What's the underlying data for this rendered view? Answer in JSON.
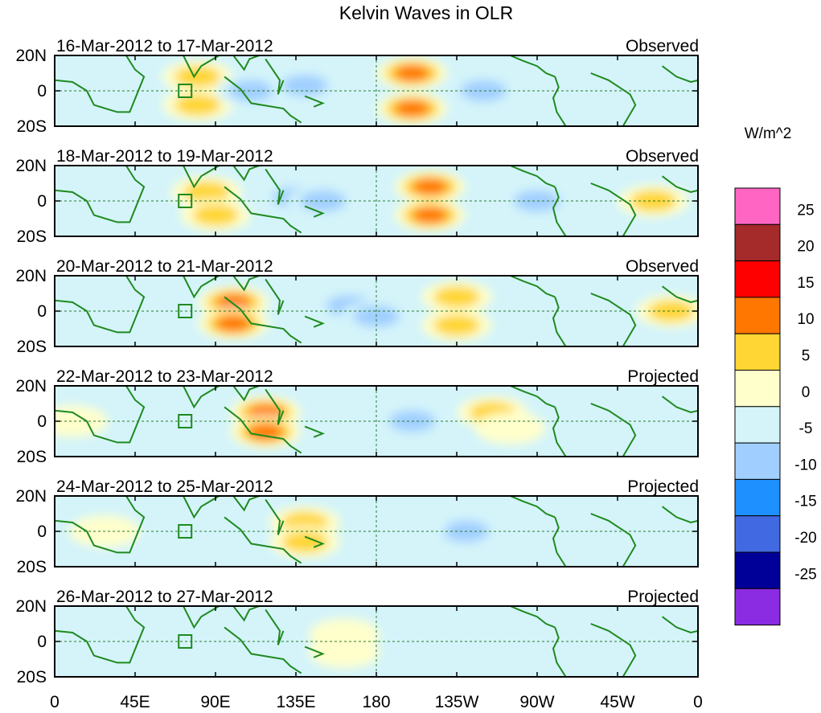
{
  "chart_data": {
    "type": "heatmap",
    "title": "Kelvin Waves in OLR",
    "units": "W/m^2",
    "x_tick_labels": [
      "0",
      "45E",
      "90E",
      "135E",
      "180",
      "135W",
      "90W",
      "45W",
      "0"
    ],
    "x_tick_values_deg_east": [
      0,
      45,
      90,
      135,
      180,
      225,
      270,
      315,
      360
    ],
    "y_tick_labels": [
      "20N",
      "0",
      "20S"
    ],
    "y_tick_values": [
      20,
      0,
      -20
    ],
    "xlim": [
      0,
      360
    ],
    "ylim": [
      -20,
      20
    ],
    "colorbar": {
      "labels": [
        "25",
        "20",
        "15",
        "10",
        "5",
        "0",
        "-5",
        "-10",
        "-15",
        "-20",
        "-25"
      ],
      "levels": [
        25,
        20,
        15,
        10,
        5,
        0,
        -5,
        -10,
        -15,
        -20,
        -25
      ],
      "colors": [
        "#ff66c4",
        "#a52a2a",
        "#ff0000",
        "#ff7700",
        "#ffd633",
        "#ffffcc",
        "#d4f4fa",
        "#a0cfff",
        "#1e90ff",
        "#4169e1",
        "#000099",
        "#8b2be2"
      ]
    },
    "panels": [
      {
        "date_range": "16-Mar-2012 to 17-Mar-2012",
        "status": "Observed",
        "anomalies": [
          {
            "lon": 80,
            "lat": 8,
            "value": 12
          },
          {
            "lon": 80,
            "lat": -8,
            "value": 12
          },
          {
            "lon": 200,
            "lat": 10,
            "value": 18
          },
          {
            "lon": 200,
            "lat": -10,
            "value": 18
          },
          {
            "lon": 110,
            "lat": 0,
            "value": -10
          },
          {
            "lon": 140,
            "lat": 3,
            "value": -12
          },
          {
            "lon": 240,
            "lat": 0,
            "value": -12
          },
          {
            "lon": 275,
            "lat": 0,
            "value": -8
          },
          {
            "lon": 15,
            "lat": 0,
            "value": -8
          }
        ]
      },
      {
        "date_range": "18-Mar-2012 to 19-Mar-2012",
        "status": "Observed",
        "anomalies": [
          {
            "lon": 85,
            "lat": 5,
            "value": 10
          },
          {
            "lon": 90,
            "lat": -8,
            "value": 12
          },
          {
            "lon": 210,
            "lat": 8,
            "value": 16
          },
          {
            "lon": 210,
            "lat": -8,
            "value": 15
          },
          {
            "lon": 335,
            "lat": 0,
            "value": 10
          },
          {
            "lon": 135,
            "lat": 2,
            "value": -14
          },
          {
            "lon": 150,
            "lat": 0,
            "value": -12
          },
          {
            "lon": 270,
            "lat": 0,
            "value": -12
          },
          {
            "lon": 30,
            "lat": 0,
            "value": -7
          }
        ]
      },
      {
        "date_range": "20-Mar-2012 to 21-Mar-2012",
        "status": "Observed",
        "anomalies": [
          {
            "lon": 100,
            "lat": 5,
            "value": 16
          },
          {
            "lon": 100,
            "lat": -7,
            "value": 16
          },
          {
            "lon": 225,
            "lat": 8,
            "value": 12
          },
          {
            "lon": 225,
            "lat": -8,
            "value": 12
          },
          {
            "lon": 345,
            "lat": 0,
            "value": 12
          },
          {
            "lon": 165,
            "lat": 3,
            "value": -12
          },
          {
            "lon": 180,
            "lat": -3,
            "value": -12
          },
          {
            "lon": 285,
            "lat": 0,
            "value": -7
          },
          {
            "lon": 60,
            "lat": 0,
            "value": -6
          }
        ]
      },
      {
        "date_range": "22-Mar-2012 to 23-Mar-2012",
        "status": "Projected",
        "anomalies": [
          {
            "lon": 118,
            "lat": 5,
            "value": 16
          },
          {
            "lon": 118,
            "lat": -6,
            "value": 17
          },
          {
            "lon": 245,
            "lat": 5,
            "value": 10
          },
          {
            "lon": 255,
            "lat": -4,
            "value": 9
          },
          {
            "lon": 10,
            "lat": 0,
            "value": 8
          },
          {
            "lon": 200,
            "lat": 0,
            "value": -10
          },
          {
            "lon": 305,
            "lat": 0,
            "value": -7
          },
          {
            "lon": 160,
            "lat": 4,
            "value": -6
          }
        ]
      },
      {
        "date_range": "24-Mar-2012 to 25-Mar-2012",
        "status": "Projected",
        "anomalies": [
          {
            "lon": 140,
            "lat": 5,
            "value": 10
          },
          {
            "lon": 140,
            "lat": -6,
            "value": 10
          },
          {
            "lon": 28,
            "lat": 0,
            "value": 5
          },
          {
            "lon": 230,
            "lat": 0,
            "value": -10
          },
          {
            "lon": 200,
            "lat": 3,
            "value": -7
          },
          {
            "lon": 80,
            "lat": 0,
            "value": -4
          }
        ]
      },
      {
        "date_range": "26-Mar-2012 to 27-Mar-2012",
        "status": "Projected",
        "anomalies": [
          {
            "lon": 162,
            "lat": 4,
            "value": 8
          },
          {
            "lon": 162,
            "lat": -6,
            "value": 8
          },
          {
            "lon": 240,
            "lat": 0,
            "value": -7
          },
          {
            "lon": 215,
            "lat": -8,
            "value": -6
          },
          {
            "lon": 85,
            "lat": 0,
            "value": -4
          }
        ]
      }
    ]
  }
}
